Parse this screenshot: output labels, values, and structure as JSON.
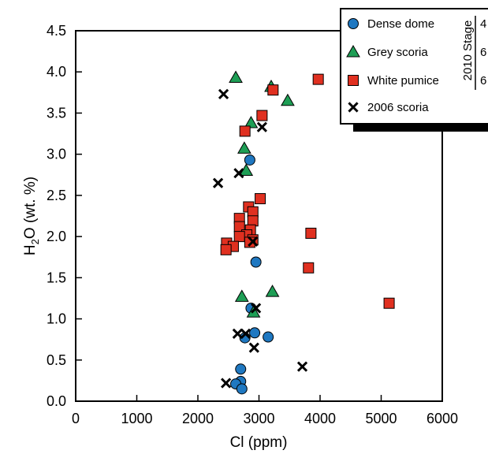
{
  "chart_data": {
    "type": "scatter",
    "xlabel": "Cl (ppm)",
    "ylabel": {
      "main": "H",
      "sub": "2",
      "rest": "O (wt. %)"
    },
    "xlim": [
      0,
      6000
    ],
    "ylim": [
      0,
      4.5
    ],
    "xticks": [
      0,
      1000,
      2000,
      3000,
      4000,
      5000,
      6000
    ],
    "yticks": [
      0.0,
      0.5,
      1.0,
      1.5,
      2.0,
      2.5,
      3.0,
      3.5,
      4.0,
      4.5
    ],
    "ytick_labels": [
      "0.0",
      "0.5",
      "1.0",
      "1.5",
      "2.0",
      "2.5",
      "3.0",
      "3.5",
      "4.0",
      "4.5"
    ],
    "grid": false,
    "legend_position": "top-right",
    "legend_group_label": "2010 Stage",
    "series": [
      {
        "name": "Dense dome",
        "marker": "circle",
        "color": "#1f78c1",
        "stage": "4",
        "points": [
          [
            2850,
            2.93
          ],
          [
            2950,
            1.69
          ],
          [
            2870,
            1.13
          ],
          [
            2930,
            0.83
          ],
          [
            2770,
            0.77
          ],
          [
            3150,
            0.78
          ],
          [
            2700,
            0.39
          ],
          [
            2700,
            0.24
          ],
          [
            2620,
            0.21
          ],
          [
            2720,
            0.15
          ]
        ]
      },
      {
        "name": "Grey scoria",
        "marker": "triangle",
        "color": "#1e9e55",
        "stage": "6",
        "points": [
          [
            2620,
            3.93
          ],
          [
            3200,
            3.82
          ],
          [
            3470,
            3.65
          ],
          [
            2870,
            3.38
          ],
          [
            2760,
            3.07
          ],
          [
            2790,
            2.8
          ],
          [
            3220,
            1.33
          ],
          [
            2720,
            1.27
          ],
          [
            2910,
            1.08
          ]
        ]
      },
      {
        "name": "White pumice",
        "marker": "square",
        "color": "#e03020",
        "stage": "6",
        "points": [
          [
            3970,
            3.91
          ],
          [
            3230,
            3.78
          ],
          [
            3050,
            3.47
          ],
          [
            2770,
            3.28
          ],
          [
            3020,
            2.46
          ],
          [
            2830,
            2.36
          ],
          [
            2900,
            2.3
          ],
          [
            2680,
            2.22
          ],
          [
            2900,
            2.19
          ],
          [
            2680,
            2.12
          ],
          [
            2860,
            2.08
          ],
          [
            2800,
            2.02
          ],
          [
            2680,
            2.0
          ],
          [
            2900,
            1.96
          ],
          [
            2850,
            1.93
          ],
          [
            2470,
            1.92
          ],
          [
            2580,
            1.88
          ],
          [
            2460,
            1.84
          ],
          [
            3850,
            2.04
          ],
          [
            3810,
            1.62
          ],
          [
            5130,
            1.19
          ]
        ]
      },
      {
        "name": "2006 scoria",
        "marker": "cross",
        "color": "#000000",
        "stage": "",
        "points": [
          [
            2420,
            3.73
          ],
          [
            3050,
            3.33
          ],
          [
            2670,
            2.77
          ],
          [
            2330,
            2.65
          ],
          [
            2900,
            1.94
          ],
          [
            2950,
            1.13
          ],
          [
            2650,
            0.82
          ],
          [
            2780,
            0.82
          ],
          [
            2920,
            0.65
          ],
          [
            3710,
            0.42
          ],
          [
            2460,
            0.22
          ]
        ]
      }
    ]
  }
}
